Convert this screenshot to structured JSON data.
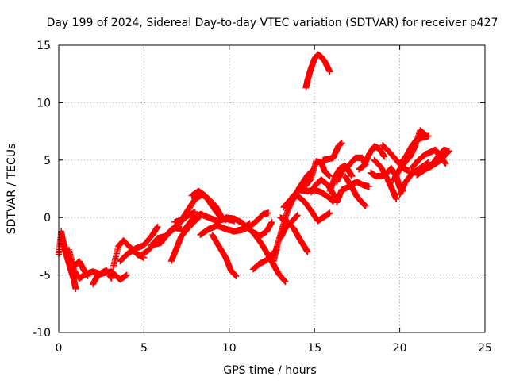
{
  "chart_data": {
    "type": "scatter",
    "title": "Day 199 of 2024, Sidereal Day-to-day VTEC variation (SDTVAR) for receiver p427",
    "xlabel": "GPS time / hours",
    "ylabel": "SDTVAR / TECUs",
    "xlim": [
      0,
      25
    ],
    "ylim": [
      -10,
      15
    ],
    "xticks": [
      0,
      5,
      10,
      15,
      20,
      25
    ],
    "yticks": [
      -10,
      -5,
      0,
      5,
      10,
      15
    ],
    "grid": true,
    "marker": "+",
    "series_color": "#ff0000",
    "tracks": [
      {
        "points": [
          [
            0.0,
            -3.2
          ],
          [
            0.15,
            -1.2
          ],
          [
            0.3,
            -2.5
          ],
          [
            0.5,
            -3.5
          ],
          [
            0.7,
            -4.5
          ],
          [
            0.85,
            -5.2
          ],
          [
            1.0,
            -6.2
          ]
        ]
      },
      {
        "points": [
          [
            0.2,
            -1.8
          ],
          [
            0.45,
            -3.0
          ],
          [
            0.7,
            -3.8
          ],
          [
            0.95,
            -4.2
          ],
          [
            1.2,
            -3.8
          ],
          [
            1.45,
            -4.5
          ],
          [
            1.7,
            -5.1
          ]
        ]
      },
      {
        "points": [
          [
            0.6,
            -2.8
          ],
          [
            0.9,
            -4.6
          ],
          [
            1.2,
            -5.3
          ],
          [
            1.6,
            -4.9
          ],
          [
            2.0,
            -4.7
          ],
          [
            2.4,
            -4.9
          ],
          [
            2.8,
            -4.6
          ],
          [
            3.1,
            -5.3
          ]
        ]
      },
      {
        "points": [
          [
            2.0,
            -5.8
          ],
          [
            2.3,
            -5.0
          ],
          [
            2.7,
            -4.8
          ],
          [
            3.1,
            -4.7
          ],
          [
            3.6,
            -5.4
          ],
          [
            4.0,
            -5.0
          ]
        ]
      },
      {
        "points": [
          [
            3.2,
            -4.3
          ],
          [
            3.5,
            -2.5
          ],
          [
            3.8,
            -2.0
          ],
          [
            4.2,
            -2.6
          ],
          [
            4.6,
            -3.2
          ],
          [
            5.0,
            -3.5
          ]
        ]
      },
      {
        "points": [
          [
            3.6,
            -3.8
          ],
          [
            4.0,
            -3.2
          ],
          [
            4.5,
            -2.7
          ],
          [
            5.0,
            -2.4
          ],
          [
            5.5,
            -1.5
          ],
          [
            5.8,
            -0.8
          ]
        ]
      },
      {
        "points": [
          [
            4.8,
            -3.3
          ],
          [
            5.3,
            -2.8
          ],
          [
            5.8,
            -1.8
          ],
          [
            6.3,
            -1.6
          ],
          [
            6.8,
            -0.9
          ],
          [
            7.2,
            -1.0
          ]
        ]
      },
      {
        "points": [
          [
            5.4,
            -2.4
          ],
          [
            6.0,
            -2.2
          ],
          [
            6.5,
            -1.2
          ],
          [
            7.0,
            -0.6
          ],
          [
            7.5,
            0.1
          ],
          [
            8.0,
            0.5
          ]
        ]
      },
      {
        "points": [
          [
            6.6,
            -3.8
          ],
          [
            6.9,
            -2.7
          ],
          [
            7.2,
            -1.6
          ],
          [
            7.6,
            -0.9
          ],
          [
            8.0,
            -0.3
          ],
          [
            8.4,
            0.3
          ]
        ]
      },
      {
        "points": [
          [
            6.8,
            -0.4
          ],
          [
            7.2,
            -0.2
          ],
          [
            7.6,
            0.7
          ],
          [
            8.0,
            1.6
          ],
          [
            8.4,
            2.0
          ],
          [
            8.8,
            1.6
          ],
          [
            9.2,
            1.0
          ],
          [
            9.5,
            0.2
          ]
        ]
      },
      {
        "points": [
          [
            7.3,
            -1.2
          ],
          [
            7.8,
            -0.2
          ],
          [
            8.3,
            0.3
          ],
          [
            8.8,
            0.0
          ],
          [
            9.3,
            -0.3
          ],
          [
            9.8,
            -0.1
          ],
          [
            10.3,
            -0.3
          ]
        ]
      },
      {
        "points": [
          [
            7.8,
            1.9
          ],
          [
            8.2,
            2.3
          ],
          [
            8.6,
            1.9
          ],
          [
            9.0,
            1.0
          ],
          [
            9.4,
            0.2
          ],
          [
            9.8,
            -0.2
          ]
        ]
      },
      {
        "points": [
          [
            8.3,
            -1.5
          ],
          [
            8.8,
            -1.0
          ],
          [
            9.3,
            -0.7
          ],
          [
            9.8,
            -1.0
          ],
          [
            10.3,
            -1.2
          ],
          [
            10.8,
            -1.0
          ],
          [
            11.2,
            -0.5
          ]
        ]
      },
      {
        "points": [
          [
            9.0,
            -1.5
          ],
          [
            9.4,
            -2.5
          ],
          [
            9.8,
            -3.5
          ],
          [
            10.1,
            -4.6
          ],
          [
            10.4,
            -5.1
          ]
        ]
      },
      {
        "points": [
          [
            9.8,
            0.0
          ],
          [
            10.3,
            -0.1
          ],
          [
            10.8,
            -0.5
          ],
          [
            11.3,
            -1.2
          ],
          [
            11.8,
            -1.6
          ],
          [
            12.2,
            -1.2
          ],
          [
            12.5,
            -0.4
          ]
        ]
      },
      {
        "points": [
          [
            10.2,
            -1.2
          ],
          [
            10.7,
            -1.1
          ],
          [
            11.2,
            -0.8
          ],
          [
            11.6,
            -0.3
          ],
          [
            12.0,
            0.3
          ],
          [
            12.3,
            0.4
          ]
        ]
      },
      {
        "points": [
          [
            11.5,
            -1.5
          ],
          [
            11.9,
            -2.3
          ],
          [
            12.3,
            -3.3
          ],
          [
            12.6,
            -4.1
          ],
          [
            12.9,
            -4.9
          ],
          [
            13.3,
            -5.6
          ]
        ]
      },
      {
        "points": [
          [
            11.4,
            -4.5
          ],
          [
            11.8,
            -4.0
          ],
          [
            12.2,
            -3.7
          ],
          [
            12.5,
            -3.2
          ],
          [
            12.8,
            -2.8
          ]
        ]
      },
      {
        "points": [
          [
            12.6,
            -3.8
          ],
          [
            12.8,
            -2.5
          ],
          [
            13.1,
            -1.0
          ],
          [
            13.4,
            0.5
          ],
          [
            13.8,
            1.8
          ],
          [
            14.2,
            2.8
          ],
          [
            14.6,
            3.7
          ],
          [
            14.9,
            4.1
          ]
        ]
      },
      {
        "points": [
          [
            13.0,
            -1.8
          ],
          [
            13.3,
            -0.9
          ],
          [
            13.7,
            -0.3
          ],
          [
            14.0,
            0.2
          ]
        ]
      },
      {
        "points": [
          [
            13.0,
            0.0
          ],
          [
            13.4,
            -0.3
          ],
          [
            13.8,
            -1.0
          ],
          [
            14.1,
            -1.8
          ],
          [
            14.4,
            -2.5
          ],
          [
            14.6,
            -3.0
          ]
        ]
      },
      {
        "points": [
          [
            13.2,
            0.9
          ],
          [
            13.6,
            1.6
          ],
          [
            14.0,
            1.9
          ],
          [
            14.4,
            1.4
          ],
          [
            14.8,
            0.6
          ],
          [
            15.2,
            -0.3
          ],
          [
            15.6,
            0.1
          ],
          [
            15.9,
            0.4
          ]
        ]
      },
      {
        "points": [
          [
            13.7,
            1.8
          ],
          [
            14.1,
            2.4
          ],
          [
            14.6,
            2.3
          ],
          [
            15.0,
            2.4
          ],
          [
            15.4,
            2.2
          ],
          [
            15.8,
            1.8
          ],
          [
            16.1,
            1.4
          ]
        ]
      },
      {
        "points": [
          [
            14.1,
            2.6
          ],
          [
            14.5,
            2.8
          ],
          [
            14.8,
            3.4
          ],
          [
            15.1,
            4.9
          ],
          [
            15.4,
            4.8
          ],
          [
            15.6,
            4.0
          ],
          [
            15.9,
            3.6
          ]
        ]
      },
      {
        "points": [
          [
            14.8,
            2.2
          ],
          [
            15.1,
            2.9
          ],
          [
            15.4,
            3.3
          ],
          [
            15.8,
            2.8
          ],
          [
            16.2,
            1.8
          ]
        ]
      },
      {
        "points": [
          [
            14.5,
            11.3
          ],
          [
            14.6,
            12.0
          ],
          [
            14.8,
            13.0
          ],
          [
            15.0,
            13.8
          ],
          [
            15.2,
            14.2
          ],
          [
            15.4,
            14.0
          ],
          [
            15.6,
            13.6
          ],
          [
            15.9,
            12.7
          ]
        ]
      },
      {
        "points": [
          [
            15.5,
            5.0
          ],
          [
            15.8,
            5.1
          ],
          [
            16.1,
            5.2
          ],
          [
            16.4,
            6.2
          ],
          [
            16.6,
            6.5
          ]
        ]
      },
      {
        "points": [
          [
            15.9,
            2.3
          ],
          [
            16.2,
            3.5
          ],
          [
            16.5,
            4.3
          ],
          [
            16.8,
            4.5
          ],
          [
            17.0,
            4.1
          ],
          [
            17.2,
            3.6
          ]
        ]
      },
      {
        "points": [
          [
            16.3,
            3.1
          ],
          [
            16.6,
            4.0
          ],
          [
            17.0,
            4.5
          ],
          [
            17.4,
            5.2
          ],
          [
            17.8,
            5.2
          ],
          [
            18.0,
            4.6
          ]
        ]
      },
      {
        "points": [
          [
            16.3,
            1.3
          ],
          [
            16.6,
            2.4
          ],
          [
            16.9,
            2.6
          ],
          [
            17.2,
            2.9
          ],
          [
            17.5,
            3.1
          ],
          [
            17.9,
            2.8
          ],
          [
            18.2,
            2.7
          ]
        ]
      },
      {
        "points": [
          [
            16.8,
            3.6
          ],
          [
            17.2,
            2.6
          ],
          [
            17.5,
            1.8
          ],
          [
            17.8,
            1.3
          ],
          [
            18.0,
            1.0
          ]
        ]
      },
      {
        "points": [
          [
            17.6,
            4.2
          ],
          [
            17.9,
            4.5
          ],
          [
            18.2,
            5.5
          ],
          [
            18.5,
            6.2
          ],
          [
            18.8,
            6.0
          ],
          [
            19.1,
            5.3
          ]
        ]
      },
      {
        "points": [
          [
            18.3,
            3.9
          ],
          [
            18.6,
            3.6
          ],
          [
            18.9,
            3.6
          ],
          [
            19.2,
            3.8
          ],
          [
            19.5,
            4.3
          ],
          [
            19.8,
            3.6
          ],
          [
            20.0,
            2.6
          ],
          [
            20.2,
            2.3
          ]
        ]
      },
      {
        "points": [
          [
            18.5,
            5.0
          ],
          [
            18.9,
            4.4
          ],
          [
            19.3,
            3.3
          ],
          [
            19.6,
            2.3
          ],
          [
            19.8,
            1.6
          ]
        ]
      },
      {
        "points": [
          [
            19.0,
            6.3
          ],
          [
            19.4,
            5.7
          ],
          [
            19.8,
            5.0
          ],
          [
            20.2,
            4.3
          ],
          [
            20.6,
            4.0
          ]
        ]
      },
      {
        "points": [
          [
            19.6,
            3.2
          ],
          [
            20.0,
            4.2
          ],
          [
            20.3,
            4.8
          ],
          [
            20.6,
            5.3
          ],
          [
            20.9,
            6.2
          ],
          [
            21.2,
            7.6
          ],
          [
            21.5,
            7.2
          ]
        ]
      },
      {
        "points": [
          [
            20.1,
            4.8
          ],
          [
            20.4,
            5.4
          ],
          [
            20.7,
            6.2
          ],
          [
            21.0,
            6.8
          ],
          [
            21.4,
            7.0
          ],
          [
            21.7,
            7.1
          ]
        ]
      },
      {
        "points": [
          [
            20.0,
            2.0
          ],
          [
            20.3,
            3.0
          ],
          [
            20.7,
            3.8
          ],
          [
            21.1,
            4.2
          ],
          [
            21.5,
            4.6
          ],
          [
            21.7,
            4.8
          ]
        ]
      },
      {
        "points": [
          [
            20.7,
            4.3
          ],
          [
            21.1,
            5.0
          ],
          [
            21.5,
            5.5
          ],
          [
            21.8,
            5.7
          ],
          [
            22.1,
            5.9
          ],
          [
            22.4,
            5.2
          ],
          [
            22.7,
            4.7
          ]
        ]
      },
      {
        "points": [
          [
            21.0,
            3.7
          ],
          [
            21.5,
            4.2
          ],
          [
            22.0,
            4.6
          ],
          [
            22.4,
            5.0
          ],
          [
            22.7,
            5.5
          ],
          [
            22.9,
            5.8
          ]
        ]
      },
      {
        "points": [
          [
            21.8,
            4.4
          ],
          [
            22.1,
            5.0
          ],
          [
            22.4,
            5.6
          ],
          [
            22.6,
            5.9
          ],
          [
            22.8,
            5.8
          ]
        ]
      }
    ]
  }
}
